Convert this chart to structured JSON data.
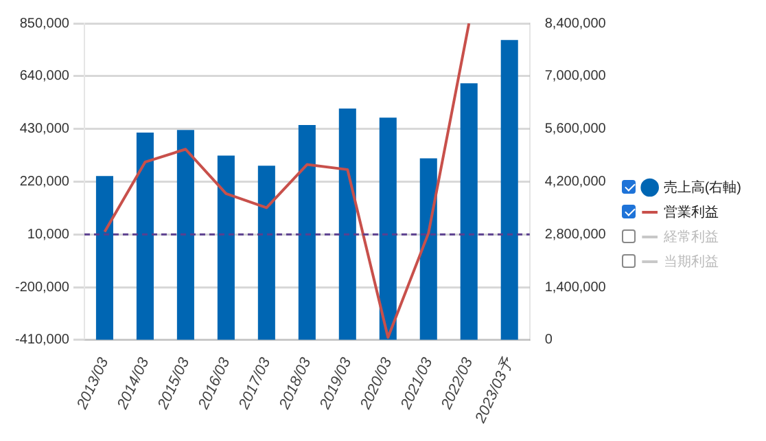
{
  "chart_data": {
    "type": "bar",
    "categories": [
      "2013/03",
      "2014/03",
      "2015/03",
      "2016/03",
      "2017/03",
      "2018/03",
      "2019/03",
      "2020/03",
      "2021/03",
      "2022/03",
      "2023/03予"
    ],
    "series": [
      {
        "name": "売上高(右軸)",
        "axis": "y2",
        "color": "#0066b3",
        "values": [
          4350000,
          5500000,
          5570000,
          4890000,
          4620000,
          5700000,
          6140000,
          5900000,
          4820000,
          6810000,
          7960000
        ]
      },
      {
        "name": "営業利益",
        "type": "line",
        "axis": "y",
        "color": "#c8504b",
        "values": [
          20000,
          298000,
          349000,
          172000,
          116000,
          288000,
          268000,
          -400000,
          15000,
          850000,
          null
        ]
      },
      {
        "name": "経常利益",
        "type": "line",
        "axis": "y",
        "color": "#c8c8c8",
        "values": [
          null,
          null,
          null,
          null,
          null,
          null,
          null,
          null,
          null,
          null,
          null
        ]
      },
      {
        "name": "当期利益",
        "type": "line",
        "axis": "y",
        "color": "#c8c8c8",
        "values": [
          null,
          null,
          null,
          null,
          null,
          null,
          null,
          null,
          null,
          null,
          null
        ]
      }
    ],
    "ylim": [
      -410000,
      850000
    ],
    "yticks": [
      {
        "value": -410000,
        "label": "-410,000"
      },
      {
        "value": -200000,
        "label": "-200,000"
      },
      {
        "value": 10000,
        "label": "10,000"
      },
      {
        "value": 220000,
        "label": "220,000"
      },
      {
        "value": 430000,
        "label": "430,000"
      },
      {
        "value": 640000,
        "label": "640,000"
      },
      {
        "value": 850000,
        "label": "850,000"
      }
    ],
    "y2lim": [
      0,
      8400000
    ],
    "y2ticks": [
      0,
      {
        "value": 1400000,
        "label": "1,400,000"
      },
      {
        "value": 2800000,
        "label": "2,800,000"
      },
      {
        "value": 4200000,
        "label": "4,200,000"
      },
      {
        "value": 5600000,
        "label": "5,600,000"
      },
      {
        "value": 7000000,
        "label": "7,000,000"
      },
      {
        "value": 8400000,
        "label": "8,400,000"
      }
    ],
    "ref_lines": [
      {
        "axis": "y",
        "value": 10000,
        "color": "#5b3f8f",
        "line_style": "dashed"
      }
    ],
    "grid": "y",
    "legend": "right",
    "marker": "none",
    "line_style": "solid"
  }
}
